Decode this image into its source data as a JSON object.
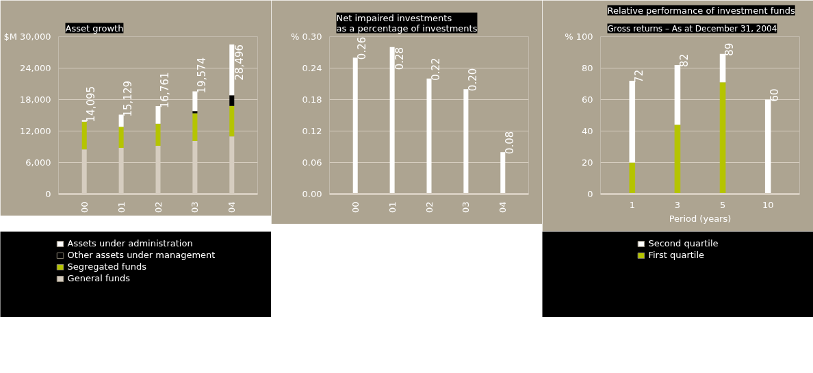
{
  "chart_data": [
    {
      "type": "bar",
      "title": "Asset growth",
      "stacked": true,
      "categories": [
        "00",
        "01",
        "02",
        "03",
        "04"
      ],
      "series": [
        {
          "name": "General funds",
          "color": "#d6cdc0",
          "values": [
            8500,
            8800,
            9200,
            10100,
            11000
          ]
        },
        {
          "name": "Segregated funds",
          "color": "#b5c400",
          "values": [
            5300,
            4000,
            4200,
            5300,
            5800
          ]
        },
        {
          "name": "Other assets under management",
          "color": "#000000",
          "values": [
            0,
            0,
            0,
            400,
            2000
          ]
        },
        {
          "name": "Assets under administration",
          "color": "#ffffff",
          "values": [
            295,
            2329,
            3361,
            3774,
            9696
          ]
        }
      ],
      "totals": [
        "14,095",
        "15,129",
        "16,761",
        "19,574",
        "28,496"
      ],
      "ylim": [
        0,
        30000
      ],
      "yticks": [
        0,
        {
          "value": 6000,
          "label": "6,000"
        },
        {
          "value": 12000,
          "label": "12,000"
        },
        {
          "value": 18000,
          "label": "18,000"
        },
        {
          "value": 24000,
          "label": "24,000"
        },
        {
          "value": 30000,
          "label": "$M 30,000"
        }
      ],
      "grid": "y",
      "legend": "bottom"
    },
    {
      "type": "bar",
      "title": "Net impaired investments\nas a percentage of investments",
      "categories": [
        "00",
        "01",
        "02",
        "03",
        "04"
      ],
      "values": [
        0.26,
        0.28,
        0.22,
        0.2,
        0.08
      ],
      "color": "#ffffff",
      "value_labels": [
        "0.26",
        "0.28",
        "0.22",
        "0.20",
        "0.08"
      ],
      "ylim": [
        0,
        0.3
      ],
      "yticks": [
        {
          "value": 0,
          "label": "0.00"
        },
        {
          "value": 0.06,
          "label": "0.06"
        },
        {
          "value": 0.12,
          "label": "0.12"
        },
        {
          "value": 0.18,
          "label": "0.18"
        },
        {
          "value": 0.24,
          "label": "0.24"
        },
        {
          "value": 0.3,
          "label": "% 0.30"
        }
      ],
      "grid": "y"
    },
    {
      "type": "bar",
      "title": "Relative performance of investment funds",
      "subtitle": "Gross returns – As at December 31, 2004",
      "stacked": true,
      "categories": [
        "1",
        "3",
        "5",
        "10"
      ],
      "xlabel": "Period (years)",
      "series": [
        {
          "name": "First quartile",
          "color": "#b5c400",
          "values": [
            20,
            44,
            71,
            0
          ]
        },
        {
          "name": "Second quartile",
          "color": "#ffffff",
          "values": [
            52,
            38,
            18,
            60
          ]
        }
      ],
      "totals": [
        "72",
        "82",
        "89",
        "60"
      ],
      "ylim": [
        0,
        100
      ],
      "yticks": [
        0,
        20,
        40,
        60,
        80,
        {
          "value": 100,
          "label": "% 100"
        }
      ],
      "grid": "y",
      "legend": "bottom"
    }
  ]
}
